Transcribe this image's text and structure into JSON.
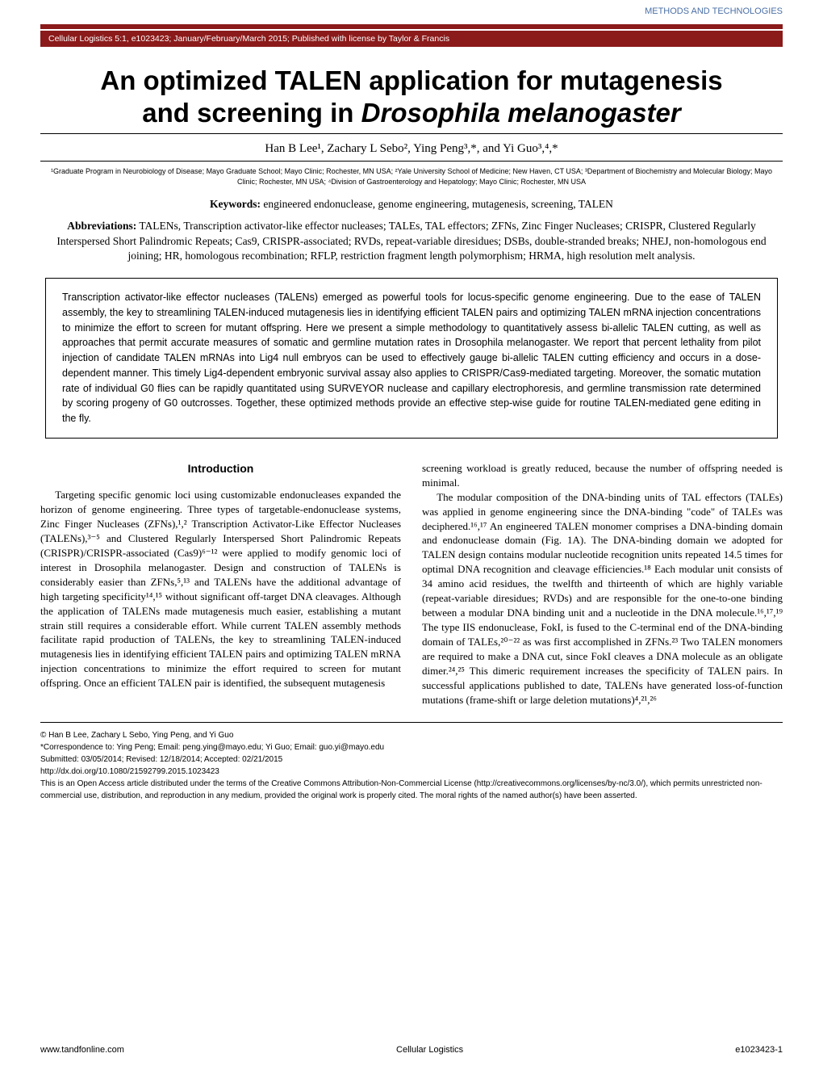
{
  "header": {
    "section_tag": "METHODS AND TECHNOLOGIES",
    "citation": "Cellular Logistics 5:1, e1023423; January/February/March 2015; Published with license by Taylor & Francis"
  },
  "title_line1": "An optimized TALEN application for mutagenesis",
  "title_line2_a": "and screening in ",
  "title_line2_b": "Drosophila melanogaster",
  "authors": "Han B Lee¹, Zachary L Sebo², Ying Peng³,*, and Yi Guo³,⁴,*",
  "affiliations": "¹Graduate Program in Neurobiology of Disease; Mayo Graduate School; Mayo Clinic; Rochester, MN USA; ²Yale University School of Medicine; New Haven, CT USA; ³Department of Biochemistry and Molecular Biology; Mayo Clinic; Rochester, MN USA; ⁴Division of Gastroenterology and Hepatology; Mayo Clinic; Rochester, MN USA",
  "keywords_label": "Keywords:",
  "keywords_text": " engineered endonuclease, genome engineering, mutagenesis, screening, TALEN",
  "abbrev_label": "Abbreviations:",
  "abbrev_text": " TALENs, Transcription activator-like effector nucleases; TALEs, TAL effectors; ZFNs, Zinc Finger Nucleases; CRISPR, Clustered Regularly Interspersed Short Palindromic Repeats; Cas9, CRISPR-associated; RVDs, repeat-variable diresidues; DSBs, double-stranded breaks; NHEJ, non-homologous end joining; HR, homologous recombination; RFLP, restriction fragment length polymorphism; HRMA, high resolution melt analysis.",
  "abstract_text": "Transcription activator-like effector nucleases (TALENs) emerged as powerful tools for locus-specific genome engineering. Due to the ease of TALEN assembly, the key to streamlining TALEN-induced mutagenesis lies in identifying efficient TALEN pairs and optimizing TALEN mRNA injection concentrations to minimize the effort to screen for mutant offspring. Here we present a simple methodology to quantitatively assess bi-allelic TALEN cutting, as well as approaches that permit accurate measures of somatic and germline mutation rates in Drosophila melanogaster. We report that percent lethality from pilot injection of candidate TALEN mRNAs into Lig4 null embryos can be used to effectively gauge bi-allelic TALEN cutting efficiency and occurs in a dose-dependent manner. This timely Lig4-dependent embryonic survival assay also applies to CRISPR/Cas9-mediated targeting. Moreover, the somatic mutation rate of individual G0 flies can be rapidly quantitated using SURVEYOR nuclease and capillary electrophoresis, and germline transmission rate determined by scoring progeny of G0 outcrosses. Together, these optimized methods provide an effective step-wise guide for routine TALEN-mediated gene editing in the fly.",
  "intro_heading": "Introduction",
  "col1_para": "Targeting specific genomic loci using customizable endonucleases expanded the horizon of genome engineering. Three types of targetable-endonuclease systems, Zinc Finger Nucleases (ZFNs),¹,² Transcription Activator-Like Effector Nucleases (TALENs),³⁻⁵ and Clustered Regularly Interspersed Short Palindromic Repeats (CRISPR)/CRISPR-associated (Cas9)⁶⁻¹² were applied to modify genomic loci of interest in Drosophila melanogaster. Design and construction of TALENs is considerably easier than ZFNs,⁵,¹³ and TALENs have the additional advantage of high targeting specificity¹⁴,¹⁵ without significant off-target DNA cleavages. Although the application of TALENs made mutagenesis much easier, establishing a mutant strain still requires a considerable effort. While current TALEN assembly methods facilitate rapid production of TALENs, the key to streamlining TALEN-induced mutagenesis lies in identifying efficient TALEN pairs and optimizing TALEN mRNA injection concentrations to minimize the effort required to screen for mutant offspring. Once an efficient TALEN pair is identified, the subsequent mutagenesis",
  "col2_para1": "screening workload is greatly reduced, because the number of offspring needed is minimal.",
  "col2_para2": "The modular composition of the DNA-binding units of TAL effectors (TALEs) was applied in genome engineering since the DNA-binding \"code\" of TALEs was deciphered.¹⁶,¹⁷ An engineered TALEN monomer comprises a DNA-binding domain and endonuclease domain (Fig. 1A). The DNA-binding domain we adopted for TALEN design contains modular nucleotide recognition units repeated 14.5 times for optimal DNA recognition and cleavage efficiencies.¹⁸ Each modular unit consists of 34 amino acid residues, the twelfth and thirteenth of which are highly variable (repeat-variable diresidues; RVDs) and are responsible for the one-to-one binding between a modular DNA binding unit and a nucleotide in the DNA molecule.¹⁶,¹⁷,¹⁹ The type IIS endonuclease, FokI, is fused to the C-terminal end of the DNA-binding domain of TALEs,²⁰⁻²² as was first accomplished in ZFNs.²³ Two TALEN monomers are required to make a DNA cut, since FokI cleaves a DNA molecule as an obligate dimer.²⁴,²⁵ This dimeric requirement increases the specificity of TALEN pairs. In successful applications published to date, TALENs have generated loss-of-function mutations (frame-shift or large deletion mutations)⁴,²¹,²⁶",
  "footer": {
    "copyright": "© Han B Lee, Zachary L Sebo, Ying Peng, and Yi Guo",
    "correspondence": "*Correspondence to: Ying Peng; Email: peng.ying@mayo.edu; Yi Guo; Email: guo.yi@mayo.edu",
    "dates": "Submitted: 03/05/2014; Revised: 12/18/2014; Accepted: 02/21/2015",
    "doi": "http://dx.doi.org/10.1080/21592799.2015.1023423",
    "license": "This is an Open Access article distributed under the terms of the Creative Commons Attribution-Non-Commercial License (http://creativecommons.org/licenses/by-nc/3.0/), which permits unrestricted non-commercial use, distribution, and reproduction in any medium, provided the original work is properly cited. The moral rights of the named author(s) have been asserted."
  },
  "page_footer": {
    "left": "www.tandfonline.com",
    "center": "Cellular Logistics",
    "right": "e1023423-1"
  }
}
